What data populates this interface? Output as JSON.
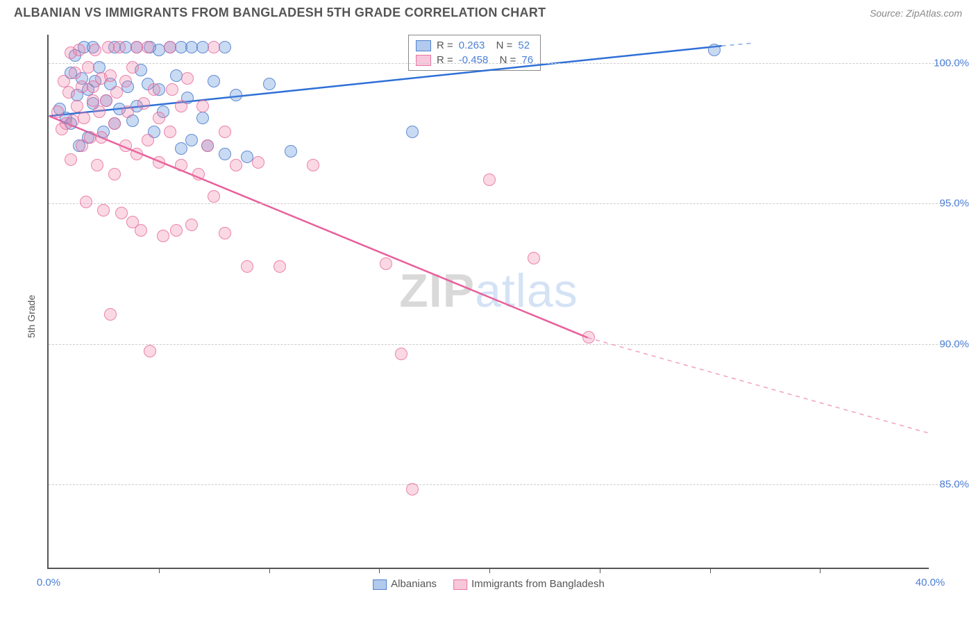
{
  "header": {
    "title": "ALBANIAN VS IMMIGRANTS FROM BANGLADESH 5TH GRADE CORRELATION CHART",
    "source": "Source: ZipAtlas.com"
  },
  "chart": {
    "type": "scatter",
    "ylabel": "5th Grade",
    "xlim": [
      0,
      40
    ],
    "ylim": [
      82,
      101
    ],
    "xtick_labels": [
      "0.0%",
      "40.0%"
    ],
    "ytick_values": [
      85,
      90,
      95,
      100
    ],
    "ytick_labels": [
      "85.0%",
      "90.0%",
      "95.0%",
      "100.0%"
    ],
    "xtick_minor": [
      5,
      10,
      15,
      20,
      25,
      30,
      35
    ],
    "background_color": "#ffffff",
    "grid_color": "#cccccc",
    "axis_color": "#555555",
    "label_color": "#4a7fd6",
    "marker_radius": 9,
    "watermark": {
      "part1": "ZIP",
      "part2": "atlas"
    },
    "series": [
      {
        "name": "Albanians",
        "color_fill": "rgba(100,150,220,0.35)",
        "color_stroke": "rgba(70,120,200,0.8)",
        "trend_color": "#2e6fd6",
        "R": "0.263",
        "N": "52",
        "trend": {
          "x1": 0,
          "y1": 98.1,
          "x2": 30.6,
          "y2": 100.6,
          "dash_after_x": 30.6,
          "dash_to_x": 32,
          "dash_to_y": 100.7
        },
        "points": [
          [
            0.5,
            98.3
          ],
          [
            0.8,
            98.0
          ],
          [
            1.0,
            99.6
          ],
          [
            1.0,
            97.8
          ],
          [
            1.2,
            100.2
          ],
          [
            1.3,
            98.8
          ],
          [
            1.4,
            97.0
          ],
          [
            1.5,
            99.4
          ],
          [
            1.6,
            100.5
          ],
          [
            1.8,
            99.0
          ],
          [
            1.8,
            97.3
          ],
          [
            2.0,
            98.5
          ],
          [
            2.0,
            100.5
          ],
          [
            2.1,
            99.3
          ],
          [
            2.3,
            99.8
          ],
          [
            2.5,
            97.5
          ],
          [
            2.6,
            98.6
          ],
          [
            2.8,
            99.2
          ],
          [
            3.0,
            100.5
          ],
          [
            3.0,
            97.8
          ],
          [
            3.2,
            98.3
          ],
          [
            3.5,
            100.5
          ],
          [
            3.6,
            99.1
          ],
          [
            3.8,
            97.9
          ],
          [
            4.0,
            98.4
          ],
          [
            4.0,
            100.5
          ],
          [
            4.2,
            99.7
          ],
          [
            4.5,
            99.2
          ],
          [
            4.6,
            100.5
          ],
          [
            4.8,
            97.5
          ],
          [
            5.0,
            100.4
          ],
          [
            5.0,
            99.0
          ],
          [
            5.2,
            98.2
          ],
          [
            5.5,
            100.5
          ],
          [
            5.8,
            99.5
          ],
          [
            6.0,
            96.9
          ],
          [
            6.0,
            100.5
          ],
          [
            6.3,
            98.7
          ],
          [
            6.5,
            97.2
          ],
          [
            6.5,
            100.5
          ],
          [
            7.0,
            100.5
          ],
          [
            7.0,
            98.0
          ],
          [
            7.2,
            97.0
          ],
          [
            7.5,
            99.3
          ],
          [
            8.0,
            100.5
          ],
          [
            8.0,
            96.7
          ],
          [
            8.5,
            98.8
          ],
          [
            9.0,
            96.6
          ],
          [
            10.0,
            99.2
          ],
          [
            11.0,
            96.8
          ],
          [
            16.5,
            97.5
          ],
          [
            30.2,
            100.4
          ]
        ]
      },
      {
        "name": "Immigrants from Bangladesh",
        "color_fill": "rgba(240,130,170,0.3)",
        "color_stroke": "rgba(230,100,150,0.75)",
        "trend_color": "#e85f9c",
        "R": "-0.458",
        "N": "76",
        "trend": {
          "x1": 0,
          "y1": 98.1,
          "x2": 24.5,
          "y2": 90.2,
          "dash_after_x": 24.5,
          "dash_to_x": 40,
          "dash_to_y": 86.8
        },
        "points": [
          [
            0.4,
            98.2
          ],
          [
            0.6,
            97.6
          ],
          [
            0.7,
            99.3
          ],
          [
            0.8,
            97.8
          ],
          [
            0.9,
            98.9
          ],
          [
            1.0,
            96.5
          ],
          [
            1.0,
            100.3
          ],
          [
            1.1,
            97.9
          ],
          [
            1.2,
            99.6
          ],
          [
            1.3,
            98.4
          ],
          [
            1.4,
            100.4
          ],
          [
            1.5,
            97.0
          ],
          [
            1.5,
            99.1
          ],
          [
            1.6,
            98.0
          ],
          [
            1.7,
            95.0
          ],
          [
            1.8,
            99.8
          ],
          [
            1.9,
            97.3
          ],
          [
            2.0,
            98.6
          ],
          [
            2.0,
            99.1
          ],
          [
            2.1,
            100.4
          ],
          [
            2.2,
            96.3
          ],
          [
            2.3,
            98.2
          ],
          [
            2.4,
            97.3
          ],
          [
            2.4,
            99.4
          ],
          [
            2.5,
            94.7
          ],
          [
            2.6,
            98.6
          ],
          [
            2.7,
            100.5
          ],
          [
            2.8,
            99.5
          ],
          [
            2.8,
            91.0
          ],
          [
            3.0,
            97.8
          ],
          [
            3.0,
            96.0
          ],
          [
            3.1,
            98.9
          ],
          [
            3.2,
            100.5
          ],
          [
            3.3,
            94.6
          ],
          [
            3.5,
            99.3
          ],
          [
            3.5,
            97.0
          ],
          [
            3.6,
            98.2
          ],
          [
            3.8,
            94.3
          ],
          [
            3.8,
            99.8
          ],
          [
            4.0,
            96.7
          ],
          [
            4.0,
            100.5
          ],
          [
            4.2,
            94.0
          ],
          [
            4.3,
            98.5
          ],
          [
            4.5,
            97.2
          ],
          [
            4.5,
            100.5
          ],
          [
            4.6,
            89.7
          ],
          [
            4.8,
            99.0
          ],
          [
            5.0,
            96.4
          ],
          [
            5.0,
            98.0
          ],
          [
            5.2,
            93.8
          ],
          [
            5.5,
            97.5
          ],
          [
            5.5,
            100.5
          ],
          [
            5.6,
            99.0
          ],
          [
            5.8,
            94.0
          ],
          [
            6.0,
            96.3
          ],
          [
            6.0,
            98.4
          ],
          [
            6.3,
            99.4
          ],
          [
            6.5,
            94.2
          ],
          [
            6.8,
            96.0
          ],
          [
            7.0,
            98.4
          ],
          [
            7.2,
            97.0
          ],
          [
            7.5,
            95.2
          ],
          [
            7.5,
            100.5
          ],
          [
            8.0,
            97.5
          ],
          [
            8.0,
            93.9
          ],
          [
            8.5,
            96.3
          ],
          [
            9.0,
            92.7
          ],
          [
            9.5,
            96.4
          ],
          [
            10.5,
            92.7
          ],
          [
            12.0,
            96.3
          ],
          [
            15.3,
            92.8
          ],
          [
            16.0,
            89.6
          ],
          [
            16.5,
            84.8
          ],
          [
            20.0,
            95.8
          ],
          [
            22.0,
            93.0
          ],
          [
            24.5,
            90.2
          ]
        ]
      }
    ],
    "legend_bottom": [
      {
        "label": "Albanians",
        "class": "blue"
      },
      {
        "label": "Immigrants from Bangladesh",
        "class": "pink"
      }
    ]
  }
}
